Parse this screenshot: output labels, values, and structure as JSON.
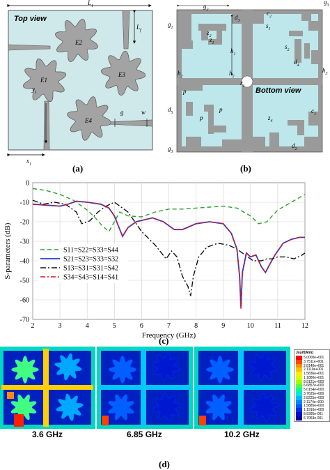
{
  "panels": {
    "a": {
      "label": "(a)",
      "title": "Top view",
      "elements": [
        "E1",
        "E2",
        "E3",
        "E4"
      ],
      "dims": [
        "L",
        "L",
        "x",
        "y",
        "g",
        "w"
      ],
      "subs": [
        "1",
        "f",
        "1",
        "1"
      ]
    },
    "b": {
      "label": "(b)",
      "title": "Bottom view",
      "dims": [
        "g",
        "g",
        "d",
        "h",
        "c",
        "g",
        "z",
        "z",
        "s",
        "s",
        "d",
        "h",
        "h",
        "r",
        "p",
        "d",
        "p",
        "p",
        "h",
        "d",
        "z",
        "c",
        "g"
      ],
      "subs": [
        "2",
        "1",
        "3",
        "1",
        "2",
        "3",
        "2",
        "1",
        "1",
        "2",
        "4",
        "2",
        "3",
        "1",
        "",
        "5",
        "",
        "",
        "2",
        "2",
        "4",
        "1",
        "3"
      ]
    },
    "c": {
      "label": "(c)"
    },
    "d": {
      "label": "(d)",
      "frequencies": [
        "3.6 GHz",
        "6.85 GHz",
        "10.2 GHz"
      ],
      "colorbar_title": "Jsurf[A/m]",
      "colorbar_values": [
        "5.0000e+001",
        "3.7511e+001",
        "2.8140e+001",
        "2.1110e+001",
        "1.5836e+001",
        "1.1880e+001",
        "8.9121e+000",
        "6.6857e+000",
        "5.0154e+000",
        "3.7625e+000",
        "2.8225e+000",
        "2.1174e+000",
        "1.5885e+000",
        "1.1916e+000",
        "8.9395e-001",
        "6.7063e-001"
      ],
      "colorbar_colors": [
        "#ff0000",
        "#ff4500",
        "#ff8c00",
        "#ffc000",
        "#ffee00",
        "#d6ff00",
        "#9dff00",
        "#55ff3c",
        "#00ff9a",
        "#00e8e0",
        "#00b8ff",
        "#0088ff",
        "#0058ff",
        "#0030ee",
        "#0010c8",
        "#0000a0"
      ]
    }
  },
  "chart_data": {
    "type": "line",
    "xlabel": "Frequency (GHz)",
    "ylabel": "S-parameters (dB)",
    "xlim": [
      2,
      12
    ],
    "ylim": [
      -70,
      0
    ],
    "xticks": [
      2,
      3,
      4,
      5,
      6,
      7,
      8,
      9,
      10,
      11,
      12
    ],
    "yticks": [
      0,
      -10,
      -20,
      -30,
      -40,
      -50,
      -60,
      -70
    ],
    "grid": true,
    "legend_position": "lower-left",
    "series": [
      {
        "name": "S11=S22=S33=S44",
        "color": "#2ca02c",
        "dash": "6,4",
        "x": [
          2,
          2.5,
          3,
          3.5,
          4,
          4.3,
          4.55,
          4.8,
          5.0,
          5.2,
          5.5,
          6,
          6.5,
          7,
          7.5,
          8,
          8.5,
          9,
          9.5,
          10,
          10.3,
          10.6,
          11,
          11.5,
          12
        ],
        "y": [
          -3,
          -4,
          -6,
          -9,
          -14,
          -18,
          -22,
          -25,
          -20,
          -15,
          -17,
          -17.5,
          -15,
          -13.5,
          -13.5,
          -13,
          -12.5,
          -12,
          -13,
          -17,
          -21,
          -20,
          -14,
          -10,
          -6
        ]
      },
      {
        "name": "S21=S23=S33=S32",
        "color": "#1f3fcf",
        "dash": "",
        "x": [
          2,
          2.5,
          3,
          3.3,
          3.6,
          4,
          4.5,
          4.8,
          5.0,
          5.2,
          5.3,
          5.5,
          5.8,
          6.1,
          6.4,
          6.8,
          7.2,
          7.5,
          8,
          8.5,
          9,
          9.3,
          9.5,
          9.6,
          9.65,
          9.7,
          9.85,
          10.0,
          10.2,
          10.4,
          10.55,
          10.7,
          10.9,
          11.2,
          11.5,
          11.8,
          12
        ],
        "y": [
          -11,
          -11.5,
          -12,
          -11,
          -9.5,
          -10,
          -11,
          -13,
          -17,
          -24,
          -27.5,
          -23,
          -20,
          -19,
          -18,
          -20,
          -24,
          -24,
          -21,
          -20,
          -21,
          -26,
          -34,
          -48,
          -64,
          -46,
          -36,
          -38,
          -37,
          -43,
          -46,
          -42,
          -37,
          -31,
          -29,
          -28,
          -28
        ]
      },
      {
        "name": "S13=S31=S31=S42",
        "color": "#111111",
        "dash": "8,3,2,3",
        "x": [
          2,
          2.4,
          2.8,
          3.2,
          3.6,
          3.8,
          4.1,
          4.4,
          4.7,
          5.0,
          5.5,
          6.0,
          6.5,
          6.9,
          7.1,
          7.3,
          7.5,
          7.7,
          7.8,
          7.9,
          8.1,
          8.4,
          8.8,
          9.2,
          9.5,
          9.8,
          10.1,
          10.4,
          10.6,
          10.8,
          11.0,
          11.3,
          11.6,
          11.9,
          12
        ],
        "y": [
          -9,
          -11,
          -10,
          -11,
          -15,
          -21,
          -19.5,
          -15,
          -12,
          -10,
          -15,
          -25,
          -32,
          -39,
          -35,
          -38,
          -48,
          -53,
          -58,
          -48,
          -38,
          -33,
          -31,
          -32,
          -34,
          -37,
          -40,
          -40,
          -39,
          -39,
          -38,
          -38,
          -39,
          -37,
          -36
        ]
      },
      {
        "name": "S34=S43=S14=S41",
        "color": "#e0141e",
        "dash": "7,3,2,3",
        "x": [
          2,
          2.5,
          3,
          3.3,
          3.6,
          4,
          4.5,
          4.8,
          5.0,
          5.2,
          5.3,
          5.5,
          5.8,
          6.1,
          6.4,
          6.8,
          7.2,
          7.5,
          8,
          8.5,
          9,
          9.3,
          9.5,
          9.6,
          9.65,
          9.7,
          9.85,
          10.0,
          10.2,
          10.4,
          10.55,
          10.7,
          10.9,
          11.2,
          11.5,
          11.8,
          12
        ],
        "y": [
          -11,
          -11.5,
          -12,
          -11,
          -9.5,
          -10,
          -11,
          -13,
          -17,
          -24,
          -27.5,
          -23,
          -20,
          -19,
          -18,
          -20,
          -24,
          -24,
          -21,
          -20,
          -21,
          -26,
          -34,
          -48,
          -65,
          -47,
          -36,
          -38,
          -37,
          -43,
          -46,
          -42,
          -37,
          -31,
          -29,
          -28,
          -28
        ]
      }
    ]
  }
}
